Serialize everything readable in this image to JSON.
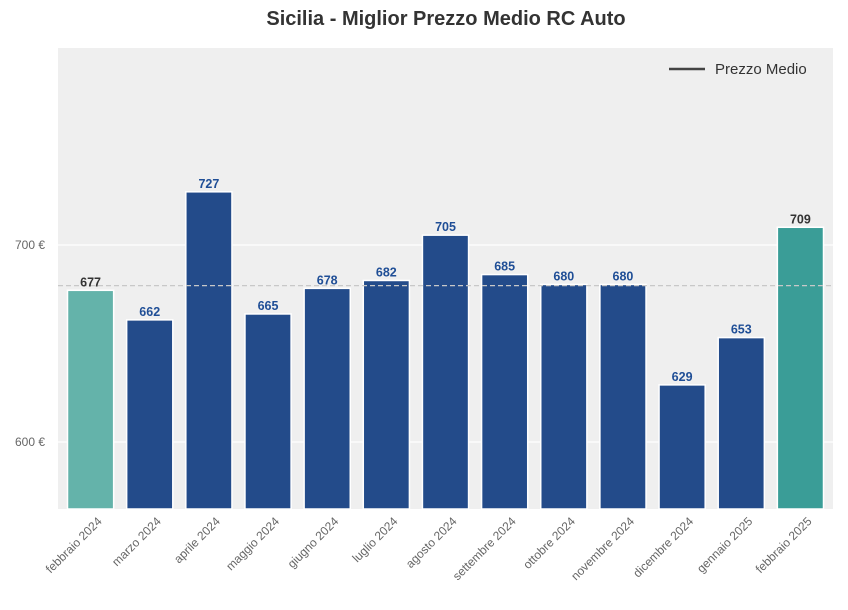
{
  "chart_data": {
    "type": "bar",
    "title": "Sicilia - Miglior Prezzo Medio RC Auto",
    "xlabel": "",
    "ylabel": "",
    "categories": [
      "febbraio 2024",
      "marzo 2024",
      "aprile 2024",
      "maggio 2024",
      "giugno 2024",
      "luglio 2024",
      "agosto 2024",
      "settembre 2024",
      "ottobre 2024",
      "novembre 2024",
      "dicembre 2024",
      "gennaio 2025",
      "febbraio 2025"
    ],
    "values": [
      677,
      662,
      727,
      665,
      678,
      682,
      705,
      685,
      680,
      680,
      629,
      653,
      709
    ],
    "bar_colors": [
      "#64b3aa",
      "#234b8a",
      "#234b8a",
      "#234b8a",
      "#234b8a",
      "#234b8a",
      "#234b8a",
      "#234b8a",
      "#234b8a",
      "#234b8a",
      "#234b8a",
      "#234b8a",
      "#3a9d97"
    ],
    "label_colors": [
      "#333333",
      "#1f4e96",
      "#1f4e96",
      "#1f4e96",
      "#1f4e96",
      "#1f4e96",
      "#1f4e96",
      "#1f4e96",
      "#1f4e96",
      "#1f4e96",
      "#1f4e96",
      "#1f4e96",
      "#333333"
    ],
    "yticks": [
      600,
      700
    ],
    "ytick_labels": [
      "600 €",
      "700 €"
    ],
    "ylim": [
      566,
      800
    ],
    "mean_line": 679.4,
    "legend": {
      "position": "top-right",
      "entries": [
        {
          "label": "Prezzo Medio",
          "color": "#444444"
        }
      ]
    },
    "grid": true
  }
}
